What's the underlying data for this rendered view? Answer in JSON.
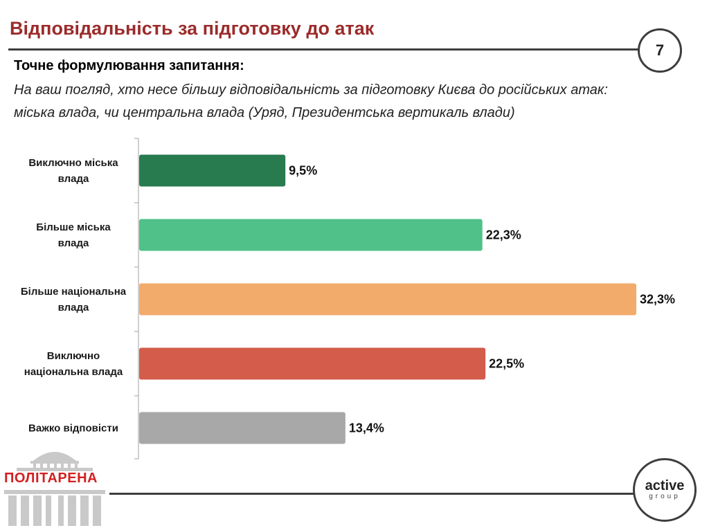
{
  "header": {
    "title": "Відповідальність за підготовку до атак",
    "page_number": "7"
  },
  "question": {
    "label": "Точне формулювання запитання:",
    "text_line1": "На ваш погляд, хто несе більшу відповідальність за підготовку Києва до російських атак:",
    "text_line2": "міська влада, чи центральна влада (Уряд, Президентська вертикаль влади)"
  },
  "chart_data": {
    "type": "bar",
    "orientation": "horizontal",
    "categories": [
      [
        "Виключно міська",
        "влада"
      ],
      [
        "Більше міська",
        "влада"
      ],
      [
        "Більше національна",
        "влада"
      ],
      [
        "Виключно",
        "національна влада"
      ],
      [
        "Важко відповісти"
      ]
    ],
    "values": [
      9.5,
      22.3,
      32.3,
      22.5,
      13.4
    ],
    "value_labels": [
      "9,5%",
      "22,3%",
      "32,3%",
      "22,5%",
      "13,4%"
    ],
    "colors": [
      "#287a4f",
      "#4fc189",
      "#f2ab6b",
      "#d35c4b",
      "#a8a8a8"
    ],
    "xlim": [
      0,
      32.3
    ],
    "title": "",
    "xlabel": "",
    "ylabel": ""
  },
  "footer": {
    "logo_text": "ПОЛІТАРЕНА",
    "brand_main": "active",
    "brand_sub": "group"
  }
}
